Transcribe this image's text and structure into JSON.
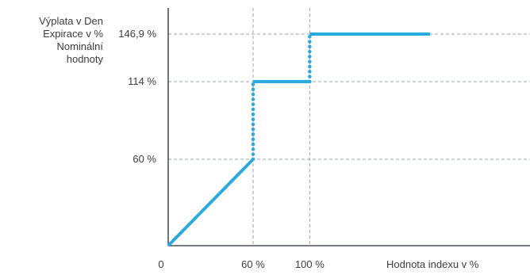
{
  "chart_data": {
    "type": "line",
    "title": "",
    "ylabel_lines": [
      "Výplata v Den",
      "Expirace v %",
      "Nominální",
      "hodnoty"
    ],
    "xlabel": "Hodnota indexu v %",
    "x_origin_label": "0",
    "x_ticks": [
      {
        "value": 60,
        "label": "60 %"
      },
      {
        "value": 100,
        "label": "100 %"
      }
    ],
    "y_ticks": [
      {
        "value": 60,
        "label": "60 %"
      },
      {
        "value": 114,
        "label": "114 %"
      },
      {
        "value": 146.9,
        "label": "146,9 %"
      }
    ],
    "xlim": [
      0,
      500
    ],
    "ylim": [
      0,
      160
    ],
    "grid": "dashed",
    "series": [
      {
        "segments": [
          {
            "style": "solid",
            "points": [
              [
                0,
                0
              ],
              [
                60,
                60
              ]
            ]
          },
          {
            "style": "dotted",
            "points": [
              [
                60,
                60
              ],
              [
                60,
                114
              ]
            ]
          },
          {
            "style": "solid",
            "points": [
              [
                60,
                114
              ],
              [
                100,
                114
              ]
            ]
          },
          {
            "style": "dotted",
            "points": [
              [
                100,
                114
              ],
              [
                100,
                146.9
              ]
            ]
          },
          {
            "style": "solid",
            "points": [
              [
                100,
                146.9
              ],
              [
                185,
                146.9
              ]
            ]
          }
        ]
      }
    ],
    "colors": {
      "line": "#2aa9df",
      "grid": "#9aa7b0",
      "axis": "#1f2d3d",
      "text": "#3d3d3d"
    }
  }
}
